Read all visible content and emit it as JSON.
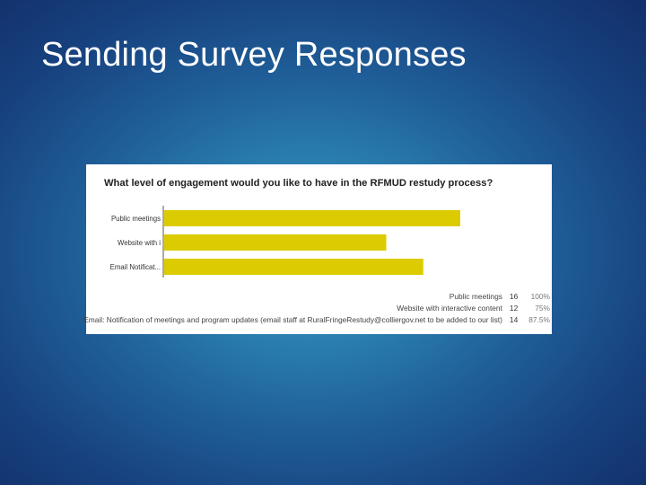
{
  "slide": {
    "title": "Sending Survey Responses"
  },
  "colors": {
    "bar": "#dccb00",
    "axis": "#555555",
    "background_center": "#3aa0c6",
    "background_edge": "#122f6a"
  },
  "chart_data": {
    "type": "bar",
    "orientation": "horizontal",
    "title": "What level of engagement would you like to have in the RFMUD restudy process?",
    "categories": [
      "Public meetings",
      "Website with i",
      "Email Notificat..."
    ],
    "values": [
      16,
      12,
      14
    ],
    "xlim": [
      0,
      16
    ],
    "grid": false,
    "table": {
      "rows": [
        {
          "label": "Public meetings",
          "count": "16",
          "percent": "100%"
        },
        {
          "label": "Website with interactive content",
          "count": "12",
          "percent": "75%"
        },
        {
          "label": "Email: Notification of meetings and program updates (email staff at RuralFringeRestudy@colliergov.net to be added to our list)",
          "count": "14",
          "percent": "87.5%"
        }
      ]
    }
  }
}
